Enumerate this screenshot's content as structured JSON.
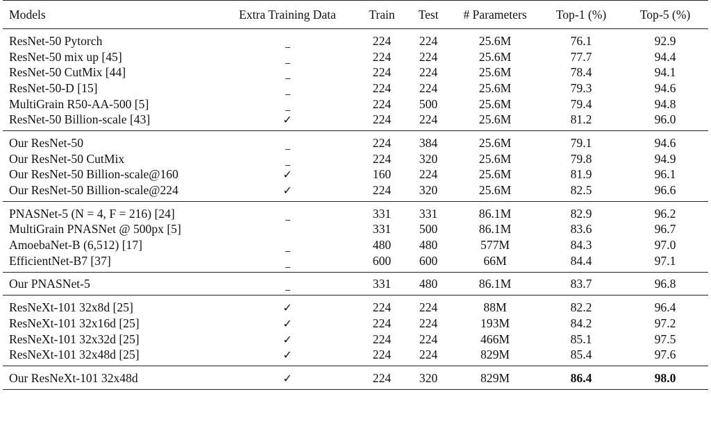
{
  "header": {
    "models": "Models",
    "extra": "Extra Training Data",
    "train": "Train",
    "test": "Test",
    "params": "# Parameters",
    "top1": "Top-1 (%)",
    "top5": "Top-5 (%)"
  },
  "groups": [
    {
      "rows": [
        {
          "model": "ResNet-50 Pytorch",
          "extra": "dash",
          "train": "224",
          "test": "224",
          "params": "25.6M",
          "top1": "76.1",
          "top5": "92.9"
        },
        {
          "model": "ResNet-50 mix up [45]",
          "extra": "dash",
          "train": "224",
          "test": "224",
          "params": "25.6M",
          "top1": "77.7",
          "top5": "94.4"
        },
        {
          "model": "ResNet-50 CutMix [44]",
          "extra": "dash",
          "train": "224",
          "test": "224",
          "params": "25.6M",
          "top1": "78.4",
          "top5": "94.1"
        },
        {
          "model": "ResNet-50-D [15]",
          "extra": "dash",
          "train": "224",
          "test": "224",
          "params": "25.6M",
          "top1": "79.3",
          "top5": "94.6"
        },
        {
          "model": "MultiGrain R50-AA-500 [5]",
          "extra": "dash",
          "train": "224",
          "test": "500",
          "params": "25.6M",
          "top1": "79.4",
          "top5": "94.8"
        },
        {
          "model": "ResNet-50 Billion-scale [43]",
          "extra": "check",
          "train": "224",
          "test": "224",
          "params": "25.6M",
          "top1": "81.2",
          "top5": "96.0"
        }
      ]
    },
    {
      "rows": [
        {
          "model": "Our ResNet-50",
          "extra": "dash",
          "train": "224",
          "test": "384",
          "params": "25.6M",
          "top1": "79.1",
          "top5": "94.6"
        },
        {
          "model": "Our ResNet-50 CutMix",
          "extra": "dash",
          "train": "224",
          "test": "320",
          "params": "25.6M",
          "top1": "79.8",
          "top5": "94.9"
        },
        {
          "model": "Our ResNet-50 Billion-scale@160",
          "extra": "check",
          "train": "160",
          "test": "224",
          "params": "25.6M",
          "top1": "81.9",
          "top5": "96.1"
        },
        {
          "model": "Our ResNet-50 Billion-scale@224",
          "extra": "check",
          "train": "224",
          "test": "320",
          "params": "25.6M",
          "top1": "82.5",
          "top5": "96.6"
        }
      ]
    },
    {
      "rows": [
        {
          "model": "PNASNet-5 (N = 4, F = 216) [24]",
          "extra": "dash",
          "train": "331",
          "test": "331",
          "params": "86.1M",
          "top1": "82.9",
          "top5": "96.2"
        },
        {
          "model": "MultiGrain PNASNet @ 500px [5]",
          "extra": "",
          "train": "331",
          "test": "500",
          "params": "86.1M",
          "top1": "83.6",
          "top5": "96.7"
        },
        {
          "model": "AmoebaNet-B (6,512) [17]",
          "extra": "dash",
          "train": "480",
          "test": "480",
          "params": "577M",
          "top1": "84.3",
          "top5": "97.0"
        },
        {
          "model": "EfficientNet-B7 [37]",
          "extra": "dash",
          "train": "600",
          "test": "600",
          "params": "66M",
          "top1": "84.4",
          "top5": "97.1"
        }
      ]
    },
    {
      "rows": [
        {
          "model": "Our PNASNet-5",
          "extra": "dash",
          "train": "331",
          "test": "480",
          "params": "86.1M",
          "top1": "83.7",
          "top5": "96.8"
        }
      ]
    },
    {
      "rows": [
        {
          "model": "ResNeXt-101 32x8d [25]",
          "extra": "check",
          "train": "224",
          "test": "224",
          "params": "88M",
          "top1": "82.2",
          "top5": "96.4"
        },
        {
          "model": "ResNeXt-101 32x16d [25]",
          "extra": "check",
          "train": "224",
          "test": "224",
          "params": "193M",
          "top1": "84.2",
          "top5": "97.2"
        },
        {
          "model": "ResNeXt-101 32x32d [25]",
          "extra": "check",
          "train": "224",
          "test": "224",
          "params": "466M",
          "top1": "85.1",
          "top5": "97.5"
        },
        {
          "model": "ResNeXt-101 32x48d [25]",
          "extra": "check",
          "train": "224",
          "test": "224",
          "params": "829M",
          "top1": "85.4",
          "top5": "97.6"
        }
      ]
    },
    {
      "rows": [
        {
          "model": "Our ResNeXt-101 32x48d",
          "extra": "check",
          "train": "224",
          "test": "320",
          "params": "829M",
          "top1": "86.4",
          "top5": "98.0",
          "bold": true
        }
      ]
    }
  ]
}
